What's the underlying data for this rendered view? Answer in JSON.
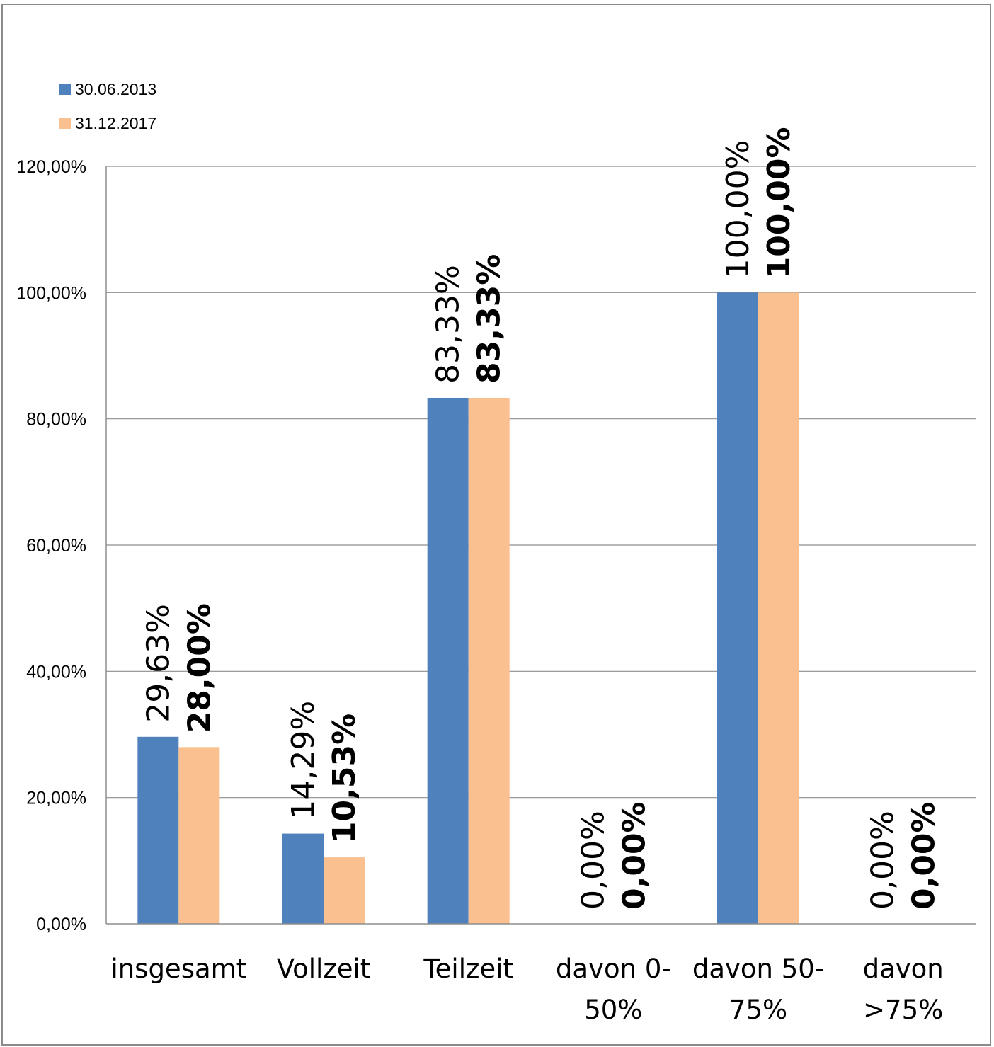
{
  "chart_data": {
    "type": "bar",
    "categories": [
      [
        "insgesamt"
      ],
      [
        "Vollzeit"
      ],
      [
        "Teilzeit"
      ],
      [
        "davon 0-",
        "50%"
      ],
      [
        "davon 50-",
        "75%"
      ],
      [
        "davon",
        ">75%"
      ]
    ],
    "series": [
      {
        "name": "30.06.2013",
        "color": "#4F81BD",
        "values": [
          29.63,
          14.29,
          83.33,
          0,
          100,
          0
        ],
        "labels": [
          "29,63%",
          "14,29%",
          "83,33%",
          "0,00%",
          "100,00%",
          "0,00%"
        ]
      },
      {
        "name": "31.12.2017",
        "color": "#FAC090",
        "values": [
          28.0,
          10.53,
          83.33,
          0,
          100,
          0
        ],
        "labels": [
          "28,00%",
          "10,53%",
          "83,33%",
          "0,00%",
          "100,00%",
          "0,00%"
        ]
      }
    ],
    "yticks": [
      0,
      20,
      40,
      60,
      80,
      100,
      120
    ],
    "ytick_labels": [
      "0,00%",
      "20,00%",
      "40,00%",
      "60,00%",
      "80,00%",
      "100,00%",
      "120,00%"
    ],
    "ylim": [
      0,
      120
    ],
    "grid": true,
    "legend": "top-left",
    "title": "",
    "xlabel": "",
    "ylabel": ""
  }
}
